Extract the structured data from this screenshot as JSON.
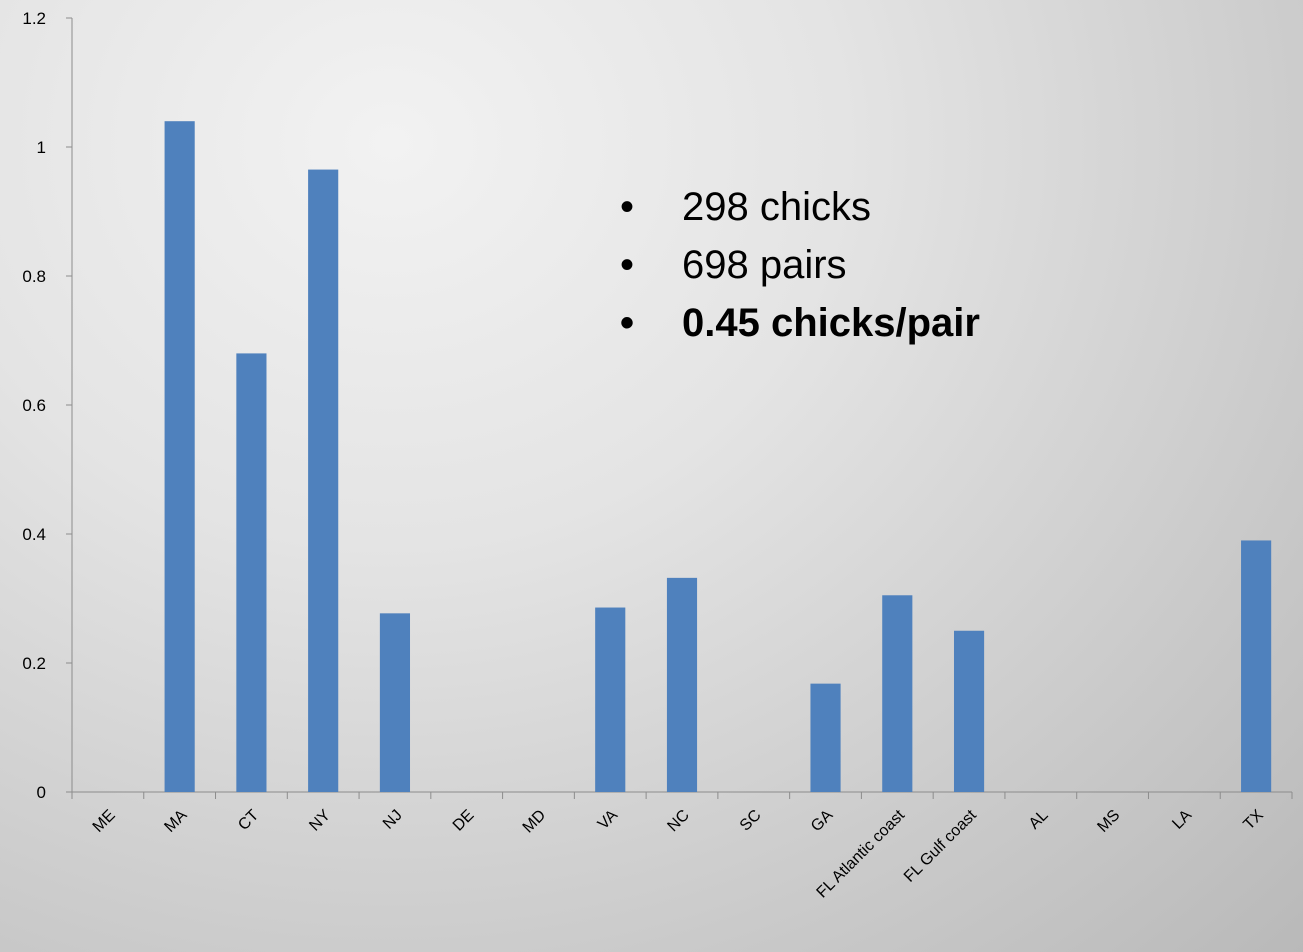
{
  "chart_data": {
    "type": "bar",
    "categories": [
      "ME",
      "MA",
      "CT",
      "NY",
      "NJ",
      "DE",
      "MD",
      "VA",
      "NC",
      "SC",
      "GA",
      "FL Atlantic coast",
      "FL Gulf coast",
      "AL",
      "MS",
      "LA",
      "TX"
    ],
    "values": [
      0,
      1.04,
      0.68,
      0.965,
      0.277,
      0,
      0,
      0.286,
      0.332,
      0,
      0.168,
      0.305,
      0.25,
      0,
      0,
      0,
      0.39
    ],
    "ylim": [
      0,
      1.2
    ],
    "yticks": [
      0,
      0.2,
      0.4,
      0.6,
      0.8,
      1,
      1.2
    ],
    "ytick_labels": [
      "0",
      "0.2",
      "0.4",
      "0.6",
      "0.8",
      "1",
      "1.2"
    ],
    "bar_color": "#4f81bd",
    "title": "",
    "xlabel": "",
    "ylabel": "",
    "grid": false,
    "legend": "none"
  },
  "notes": {
    "items": [
      "298 chicks",
      "698 pairs",
      "0.45 chicks/pair"
    ]
  }
}
